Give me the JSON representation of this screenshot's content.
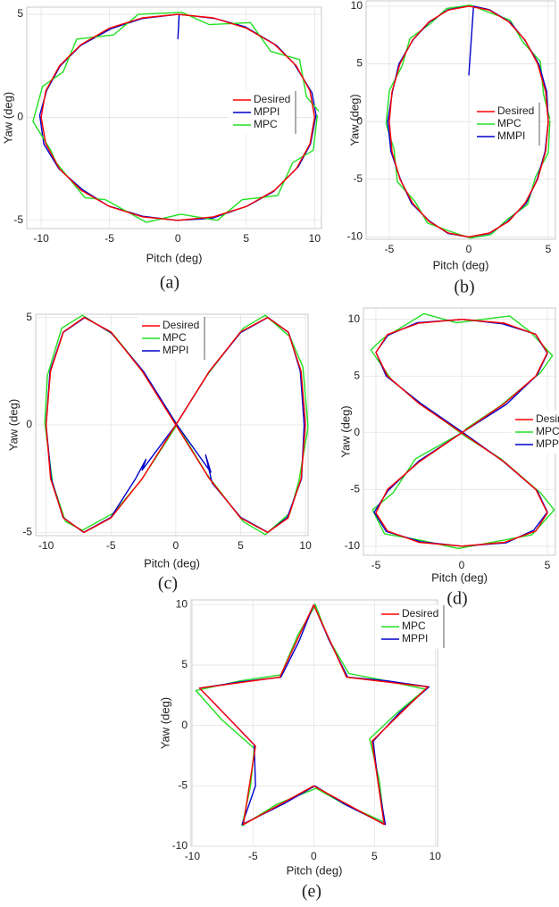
{
  "chart_data": [
    {
      "type": "line",
      "caption": "(a)",
      "xlabel": "Pitch (deg)",
      "ylabel": "Yaw (deg)",
      "xlim": [
        -11.05,
        10.5
      ],
      "ylim": [
        -5.4,
        5.35
      ],
      "xticks": [
        -10,
        -5,
        0,
        5,
        10
      ],
      "yticks": [
        -5,
        0,
        5
      ],
      "grid": true,
      "series": [
        {
          "name": "Desired",
          "color": "#ff0000",
          "x": [
            10,
            9.66,
            8.66,
            7.07,
            5,
            2.59,
            0,
            -2.59,
            -5,
            -7.07,
            -8.66,
            -9.66,
            -10,
            -9.66,
            -8.66,
            -7.07,
            -5,
            -2.59,
            0,
            2.59,
            5,
            7.07,
            8.66,
            9.66,
            10
          ],
          "values": [
            0,
            1.29,
            2.5,
            3.54,
            4.33,
            4.83,
            5,
            4.83,
            4.33,
            3.54,
            2.5,
            1.29,
            0,
            -1.29,
            -2.5,
            -3.54,
            -4.33,
            -4.83,
            -5,
            -4.83,
            -4.33,
            -3.54,
            -2.5,
            -1.29,
            0
          ]
        },
        {
          "name": "MPPI",
          "color": "#0000cc",
          "x": [
            0,
            0.1,
            2.7,
            4.9,
            7.2,
            8.5,
            9.8,
            10.1,
            9.7,
            8.8,
            7.0,
            5.1,
            2.5,
            -0.1,
            -2.6,
            -5.1,
            -7.0,
            -8.7,
            -9.8,
            -10.1,
            -9.6,
            -8.6,
            -7.1,
            -4.9,
            -2.6,
            0
          ],
          "values": [
            3.8,
            5.0,
            4.8,
            4.4,
            3.5,
            2.6,
            1.2,
            0.1,
            -1.3,
            -2.4,
            -3.6,
            -4.3,
            -4.9,
            -5.0,
            -4.8,
            -4.3,
            -3.5,
            -2.5,
            -1.3,
            0.1,
            1.3,
            2.5,
            3.5,
            4.3,
            4.8,
            5.0
          ]
        },
        {
          "name": "MPC",
          "color": "#22e022",
          "x": [
            10.3,
            9.4,
            8.9,
            6.8,
            5.3,
            2.3,
            0.3,
            -2.9,
            -4.7,
            -7.4,
            -8.4,
            -9.9,
            -10.6,
            -9.3,
            -8.9,
            -6.8,
            -5.3,
            -2.3,
            0.2,
            2.9,
            4.7,
            7.3,
            8.4,
            9.9,
            10.2
          ],
          "values": [
            0.3,
            1.0,
            2.8,
            3.2,
            4.6,
            4.5,
            5.1,
            5.0,
            4.0,
            3.8,
            2.2,
            1.5,
            -0.2,
            -1.6,
            -2.2,
            -3.9,
            -4.0,
            -5.1,
            -4.7,
            -5.0,
            -4.0,
            -3.8,
            -2.2,
            -1.6,
            0.1
          ]
        }
      ]
    },
    {
      "type": "line",
      "caption": "(b)",
      "xlabel": "Pitch (deg)",
      "ylabel": "Yaw (deg)",
      "xlim": [
        -6.46,
        5.45
      ],
      "ylim": [
        -10.2,
        10.46
      ],
      "xticks": [
        -5,
        0,
        5
      ],
      "yticks": [
        -10,
        -5,
        0,
        5,
        10
      ],
      "grid": true,
      "series": [
        {
          "name": "Desired",
          "color": "#ff0000",
          "x": [
            5,
            4.83,
            4.33,
            3.54,
            2.5,
            1.29,
            0,
            -1.29,
            -2.5,
            -3.54,
            -4.33,
            -4.83,
            -5,
            -4.83,
            -4.33,
            -3.54,
            -2.5,
            -1.29,
            0,
            1.29,
            2.5,
            3.54,
            4.33,
            4.83,
            5
          ],
          "values": [
            0,
            2.59,
            5,
            7.07,
            8.66,
            9.66,
            10,
            9.66,
            8.66,
            7.07,
            5,
            2.59,
            0,
            -2.59,
            -5,
            -7.07,
            -8.66,
            -9.66,
            -10,
            -9.66,
            -8.66,
            -7.07,
            -5,
            -2.59,
            0
          ]
        },
        {
          "name": "MPC",
          "color": "#22e022",
          "x": [
            5.1,
            4.7,
            4.5,
            3.4,
            2.6,
            1.2,
            0.1,
            -1.4,
            -2.4,
            -3.7,
            -4.2,
            -5.0,
            -5.2,
            -4.7,
            -4.5,
            -3.4,
            -2.6,
            -1.2,
            0.1,
            1.4,
            2.4,
            3.7,
            4.2,
            5.0,
            5.1
          ],
          "values": [
            0.2,
            2.4,
            5.2,
            6.9,
            8.8,
            9.5,
            10.1,
            9.8,
            8.5,
            7.2,
            4.8,
            2.7,
            -0.2,
            -2.4,
            -5.2,
            -6.9,
            -8.8,
            -9.5,
            -10.1,
            -9.8,
            -8.5,
            -7.2,
            -4.8,
            -2.7,
            0.1
          ]
        },
        {
          "name": "MMPI",
          "color": "#0000cc",
          "x": [
            0,
            0.3,
            1.3,
            2.6,
            3.5,
            4.4,
            4.9,
            5.0,
            4.8,
            4.3,
            3.6,
            2.4,
            1.3,
            0,
            -1.3,
            -2.5,
            -3.6,
            -4.3,
            -4.9,
            -5.1,
            -4.8,
            -4.4,
            -3.5,
            -2.5,
            -1.3,
            0
          ],
          "values": [
            4,
            10,
            9.7,
            8.6,
            7.1,
            5.0,
            2.6,
            0,
            -2.6,
            -5.0,
            -7.1,
            -8.7,
            -9.7,
            -10,
            -9.7,
            -8.6,
            -7.1,
            -5.0,
            -2.6,
            0,
            2.6,
            5.0,
            7.1,
            8.6,
            9.7,
            10
          ]
        }
      ]
    },
    {
      "type": "line",
      "caption": "(c)",
      "xlabel": "Pitch (deg)",
      "ylabel": "Yaw (deg)",
      "xlim": [
        -10.8,
        10.2
      ],
      "ylim": [
        -5.15,
        5.15
      ],
      "xticks": [
        -10,
        -5,
        0,
        5,
        10
      ],
      "yticks": [
        -5,
        0,
        5
      ],
      "grid": true,
      "series": [
        {
          "name": "Desired",
          "color": "#ff0000",
          "x": [
            0,
            2.59,
            5,
            7.07,
            8.66,
            9.66,
            10,
            9.66,
            8.66,
            7.07,
            5,
            2.59,
            0,
            -2.59,
            -5,
            -7.07,
            -8.66,
            -9.66,
            -10,
            -9.66,
            -8.66,
            -7.07,
            -5,
            -2.59,
            0
          ],
          "values": [
            0,
            2.5,
            4.33,
            5,
            4.33,
            2.5,
            0,
            -2.5,
            -4.33,
            -5,
            -4.33,
            -2.5,
            0,
            2.5,
            4.33,
            5,
            4.33,
            2.5,
            0,
            -2.5,
            -4.33,
            -5,
            -4.33,
            -2.5,
            0
          ]
        },
        {
          "name": "MPC",
          "color": "#22e022",
          "x": [
            0.1,
            2.4,
            5.2,
            6.9,
            8.8,
            9.8,
            10.2,
            9.5,
            8.8,
            6.9,
            5.2,
            2.4,
            -0.1,
            -2.8,
            -4.8,
            -7.2,
            -8.8,
            -9.9,
            -10.1,
            -9.5,
            -8.5,
            -7.2,
            -4.8,
            -2.7,
            0.1
          ],
          "values": [
            0.1,
            2.3,
            4.5,
            5.1,
            4.1,
            2.7,
            -0.1,
            -2.6,
            -4.1,
            -5.1,
            -4.5,
            -2.3,
            0.2,
            2.7,
            4.2,
            5.1,
            4.5,
            2.3,
            0.1,
            -2.7,
            -4.5,
            -4.9,
            -4.1,
            -2.6,
            0
          ]
        },
        {
          "name": "MPPI",
          "color": "#0000cc",
          "x": [
            0,
            2.6,
            5.0,
            7.1,
            8.7,
            9.6,
            9.9,
            9.7,
            8.6,
            7.1,
            5.0,
            2.8,
            2.3,
            2.7,
            0.1,
            -2.5,
            -5.0,
            -7.0,
            -8.7,
            -9.7,
            -10.0,
            -9.6,
            -8.7,
            -7.1,
            -5.0,
            -3.1,
            -2.3,
            -2.6,
            0
          ],
          "values": [
            0,
            2.5,
            4.3,
            5.0,
            4.3,
            2.5,
            0,
            -2.5,
            -4.3,
            -5.0,
            -4.3,
            -2.7,
            -1.4,
            -2.2,
            0,
            2.5,
            4.3,
            5.0,
            4.3,
            2.5,
            0,
            -2.5,
            -4.3,
            -5.0,
            -4.3,
            -2.5,
            -1.6,
            -2.1,
            0
          ]
        }
      ]
    },
    {
      "type": "line",
      "caption": "(d)",
      "xlabel": "Pitch (deg)",
      "ylabel": "Yaw (deg)",
      "xlim": [
        -5.73,
        5.47
      ],
      "ylim": [
        -10.8,
        11
      ],
      "xticks": [
        -5,
        0,
        5
      ],
      "yticks": [
        -10,
        -5,
        0,
        5,
        10
      ],
      "grid": true,
      "series": [
        {
          "name": "Desired",
          "color": "#ff0000",
          "x": [
            0,
            2.5,
            4.33,
            5,
            4.33,
            2.5,
            0,
            -2.5,
            -4.33,
            -5,
            -4.33,
            -2.5,
            0,
            2.5,
            4.33,
            5,
            4.33,
            2.5,
            0,
            -2.5,
            -4.33,
            -5,
            -4.33,
            -2.5,
            0
          ],
          "values": [
            0,
            2.59,
            5,
            7.07,
            8.66,
            9.66,
            10,
            9.66,
            8.66,
            7.07,
            5,
            2.59,
            0,
            -2.59,
            -5,
            -7.07,
            -8.66,
            -9.66,
            -10,
            -9.66,
            -8.66,
            -7.07,
            -5,
            -2.59,
            0
          ]
        },
        {
          "name": "MPC",
          "color": "#22e022",
          "x": [
            0.2,
            2.2,
            4.6,
            5.3,
            4.0,
            2.8,
            -0.3,
            -2.2,
            -4.6,
            -5.3,
            -4.1,
            -2.7,
            0.2,
            2.3,
            4.6,
            5.4,
            4.1,
            2.7,
            -0.2,
            -2.3,
            -4.5,
            -5.2,
            -4.0,
            -2.7,
            0
          ],
          "values": [
            0.3,
            2.3,
            5.3,
            6.8,
            8.9,
            10.3,
            9.7,
            10.5,
            8.3,
            7.3,
            4.7,
            2.9,
            -0.3,
            -2.3,
            -5.3,
            -6.8,
            -9.0,
            -9.4,
            -10.2,
            -9.5,
            -8.9,
            -6.8,
            -5.3,
            -2.3,
            0
          ]
        },
        {
          "name": "MPPI",
          "color": "#0000cc",
          "x": [
            0,
            2.6,
            4.4,
            5.0,
            4.3,
            2.4,
            0.1,
            -2.6,
            -4.3,
            -5.0,
            -4.4,
            -2.4,
            0.1,
            2.4,
            4.4,
            5.0,
            4.2,
            2.6,
            0,
            -2.4,
            -4.4,
            -5.1,
            -4.3,
            -2.5,
            0
          ],
          "values": [
            0,
            2.5,
            5.1,
            7.0,
            8.7,
            9.6,
            10.0,
            9.7,
            8.6,
            7.1,
            5.0,
            2.6,
            0,
            -2.5,
            -5.1,
            -7.0,
            -8.6,
            -9.7,
            -10.0,
            -9.6,
            -8.7,
            -7.0,
            -5.1,
            -2.5,
            0
          ]
        }
      ]
    },
    {
      "type": "line",
      "caption": "(e)",
      "xlabel": "Pitch (deg)",
      "ylabel": "Yaw (deg)",
      "xlim": [
        -10.1,
        10.2
      ],
      "ylim": [
        -10,
        10.4
      ],
      "xticks": [
        -10,
        -5,
        0,
        5,
        10
      ],
      "yticks": [
        -10,
        -5,
        0,
        5,
        10
      ],
      "grid": true,
      "series": [
        {
          "name": "Desired",
          "color": "#ff0000",
          "x": [
            0,
            2.7,
            9.4,
            4.8,
            5.8,
            0,
            -5.8,
            -4.8,
            -9.4,
            -2.8,
            0
          ],
          "values": [
            10,
            4,
            3.2,
            -1.3,
            -8.2,
            -5,
            -8.2,
            -1.7,
            3.1,
            4,
            10
          ]
        },
        {
          "name": "MPC",
          "color": "#22e022",
          "x": [
            0.1,
            1.2,
            2.9,
            5.5,
            9.2,
            6.8,
            4.6,
            5.4,
            5.8,
            2.5,
            0.2,
            -3.0,
            -5.9,
            -5.2,
            -4.9,
            -7.6,
            -9.7,
            -6.0,
            -2.7,
            -1.3,
            0.1
          ],
          "values": [
            10.1,
            7.2,
            4.3,
            3.8,
            3.0,
            1.0,
            -1.1,
            -4.5,
            -8.0,
            -6.5,
            -5.2,
            -6.5,
            -8.3,
            -5.0,
            -1.9,
            0.5,
            2.9,
            3.7,
            4.2,
            7.5,
            9.9
          ]
        },
        {
          "name": "MPPI",
          "color": "#0000cc",
          "x": [
            0,
            1.3,
            2.8,
            6.0,
            9.5,
            7.0,
            4.9,
            5.3,
            5.9,
            2.7,
            0.1,
            -2.5,
            -5.9,
            -4.8,
            -4.9,
            -7.1,
            -9.4,
            -6.1,
            -2.7,
            -1.2,
            0.0
          ],
          "values": [
            10,
            7.0,
            4.0,
            3.7,
            3.2,
            1.0,
            -1.3,
            -4.7,
            -8.2,
            -6.6,
            -5.0,
            -6.5,
            -8.2,
            -5.0,
            -1.6,
            0.7,
            3.1,
            3.6,
            4.0,
            7.0,
            10
          ]
        }
      ]
    }
  ]
}
